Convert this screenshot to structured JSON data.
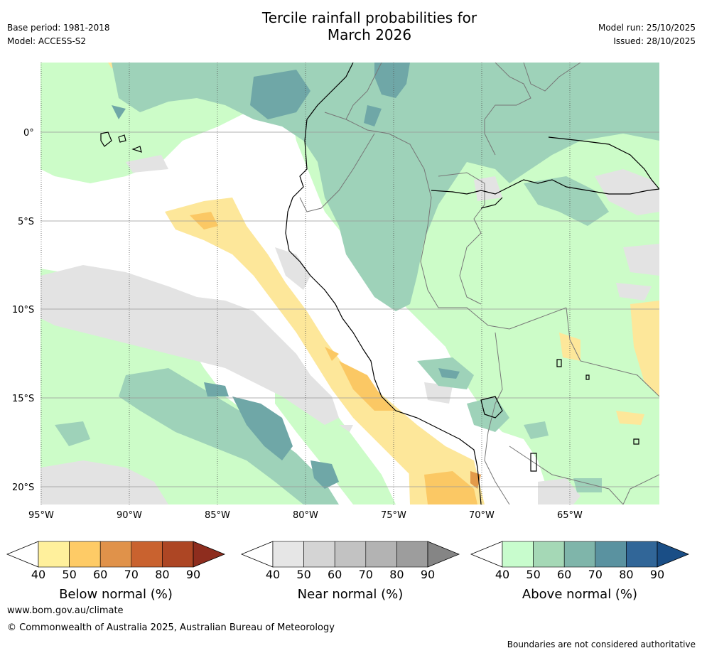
{
  "header": {
    "title_line1": "Tercile rainfall probabilities for",
    "title_line2": "March 2026",
    "base_period": "Base period: 1981-2018",
    "model": "Model: ACCESS-S2",
    "model_run": "Model run: 25/10/2025",
    "issued": "Issued: 28/10/2025"
  },
  "map": {
    "lat_labels": [
      "0°",
      "5°S",
      "10°S",
      "15°S",
      "20°S"
    ],
    "lon_labels": [
      "95°W",
      "90°W",
      "85°W",
      "80°W",
      "75°W",
      "70°W",
      "65°W"
    ],
    "colors": {
      "ocean_white": "#ffffff",
      "near_normal_40": "#e3e3e3",
      "above_40": "#ccfcc8",
      "above_50": "#9ed2b9",
      "above_60": "#6fa7a7",
      "below_40": "#fde79a",
      "below_50": "#fbc864",
      "below_60": "#e39a4a",
      "coast": "#000000",
      "border": "#777777"
    }
  },
  "colorbars": [
    {
      "name": "below",
      "title": "Below normal (%)",
      "ticks": [
        "40",
        "50",
        "60",
        "70",
        "80",
        "90"
      ],
      "colors": [
        "#fff09c",
        "#fecb66",
        "#e0924a",
        "#c9622f",
        "#ad4624",
        "#8e2d1e"
      ]
    },
    {
      "name": "near",
      "title": "Near normal (%)",
      "ticks": [
        "40",
        "50",
        "60",
        "70",
        "80",
        "90"
      ],
      "colors": [
        "#e6e6e6",
        "#d4d4d4",
        "#c2c2c2",
        "#b3b3b3",
        "#9d9d9d",
        "#858585"
      ]
    },
    {
      "name": "above",
      "title": "Above normal (%)",
      "ticks": [
        "40",
        "50",
        "60",
        "70",
        "80",
        "90"
      ],
      "colors": [
        "#c8fccd",
        "#a5d8b6",
        "#7fb5aa",
        "#5a92a0",
        "#316698",
        "#1a4e86"
      ]
    }
  ],
  "footer": {
    "url": "www.bom.gov.au/climate",
    "copyright": "© Commonwealth of Australia 2025, Australian Bureau of Meteorology",
    "disclaimer": "Boundaries are not considered authoritative"
  }
}
